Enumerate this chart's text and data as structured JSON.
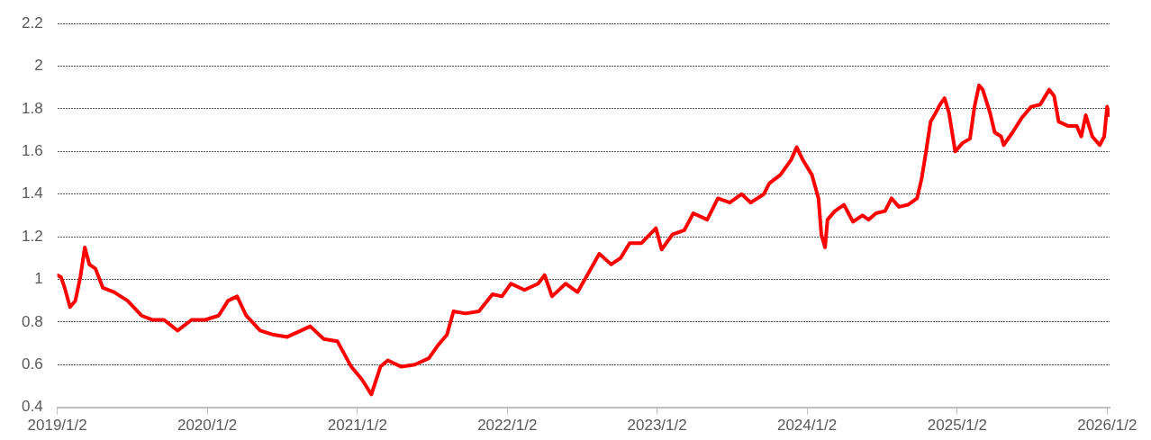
{
  "chart_data": {
    "type": "line",
    "x": [
      "2019-01-02",
      "2019-01-11",
      "2019-01-20",
      "2019-02-02",
      "2019-02-15",
      "2019-02-27",
      "2019-03-10",
      "2019-03-21",
      "2019-04-05",
      "2019-04-23",
      "2019-05-20",
      "2019-06-22",
      "2019-07-26",
      "2019-08-21",
      "2019-09-19",
      "2019-10-22",
      "2019-11-25",
      "2019-12-28",
      "2020-01-30",
      "2020-02-22",
      "2020-03-15",
      "2020-04-06",
      "2020-05-10",
      "2020-06-12",
      "2020-07-15",
      "2020-08-18",
      "2020-09-09",
      "2020-10-12",
      "2020-11-14",
      "2020-12-18",
      "2021-01-13",
      "2021-02-05",
      "2021-02-27",
      "2021-03-17",
      "2021-04-19",
      "2021-05-22",
      "2021-06-25",
      "2021-07-17",
      "2021-08-08",
      "2021-08-24",
      "2021-09-22",
      "2021-10-25",
      "2021-11-27",
      "2021-12-20",
      "2022-01-11",
      "2022-02-13",
      "2022-03-18",
      "2022-04-03",
      "2022-04-21",
      "2022-05-24",
      "2022-06-22",
      "2022-07-19",
      "2022-08-14",
      "2022-09-12",
      "2022-10-05",
      "2022-10-27",
      "2022-11-25",
      "2022-12-30",
      "2023-01-13",
      "2023-02-08",
      "2023-03-09",
      "2023-03-31",
      "2023-05-04",
      "2023-05-30",
      "2023-06-28",
      "2023-07-27",
      "2023-08-18",
      "2023-09-19",
      "2023-10-02",
      "2023-10-29",
      "2023-11-24",
      "2023-12-08",
      "2023-12-23",
      "2024-01-14",
      "2024-01-30",
      "2024-02-06",
      "2024-02-15",
      "2024-02-21",
      "2024-03-10",
      "2024-04-01",
      "2024-04-23",
      "2024-05-16",
      "2024-05-31",
      "2024-06-18",
      "2024-07-10",
      "2024-07-26",
      "2024-08-13",
      "2024-09-04",
      "2024-09-26",
      "2024-10-07",
      "2024-10-18",
      "2024-10-29",
      "2024-11-10",
      "2024-11-21",
      "2024-12-02",
      "2024-12-13",
      "2024-12-28",
      "2025-01-15",
      "2025-02-02",
      "2025-02-13",
      "2025-02-24",
      "2025-03-05",
      "2025-03-23",
      "2025-04-03",
      "2025-04-19",
      "2025-04-25",
      "2025-05-17",
      "2025-06-09",
      "2025-07-01",
      "2025-07-23",
      "2025-08-14",
      "2025-08-26",
      "2025-09-06",
      "2025-09-28",
      "2025-10-20",
      "2025-10-31",
      "2025-11-11",
      "2025-11-27",
      "2025-12-15",
      "2025-12-26",
      "2026-01-02",
      "2026-01-06"
    ],
    "series": [
      {
        "color": "#ff0000",
        "values": [
          1.02,
          1.01,
          0.96,
          0.87,
          0.9,
          1.01,
          1.15,
          1.07,
          1.05,
          0.96,
          0.94,
          0.9,
          0.83,
          0.81,
          0.81,
          0.76,
          0.81,
          0.81,
          0.83,
          0.9,
          0.92,
          0.83,
          0.76,
          0.74,
          0.73,
          0.76,
          0.78,
          0.72,
          0.71,
          0.59,
          0.53,
          0.46,
          0.59,
          0.62,
          0.59,
          0.6,
          0.63,
          0.69,
          0.74,
          0.85,
          0.84,
          0.85,
          0.93,
          0.92,
          0.98,
          0.95,
          0.98,
          1.02,
          0.92,
          0.98,
          0.94,
          1.03,
          1.12,
          1.07,
          1.1,
          1.17,
          1.17,
          1.24,
          1.14,
          1.21,
          1.23,
          1.31,
          1.28,
          1.38,
          1.36,
          1.4,
          1.36,
          1.4,
          1.45,
          1.49,
          1.56,
          1.62,
          1.56,
          1.49,
          1.38,
          1.21,
          1.15,
          1.28,
          1.32,
          1.35,
          1.27,
          1.3,
          1.28,
          1.31,
          1.32,
          1.38,
          1.34,
          1.35,
          1.38,
          1.47,
          1.6,
          1.74,
          1.78,
          1.82,
          1.85,
          1.78,
          1.6,
          1.64,
          1.66,
          1.81,
          1.91,
          1.89,
          1.78,
          1.69,
          1.67,
          1.63,
          1.69,
          1.76,
          1.81,
          1.82,
          1.89,
          1.86,
          1.74,
          1.72,
          1.72,
          1.67,
          1.77,
          1.67,
          1.63,
          1.67,
          1.81,
          1.77
        ]
      }
    ],
    "xlim": [
      "2019-01-02",
      "2026-01-08"
    ],
    "xticks": [
      {
        "value": "2019-01-02",
        "label": "2019/1/2"
      },
      {
        "value": "2020-01-02",
        "label": "2020/1/2"
      },
      {
        "value": "2021-01-02",
        "label": "2021/1/2"
      },
      {
        "value": "2022-01-02",
        "label": "2022/1/2"
      },
      {
        "value": "2023-01-02",
        "label": "2023/1/2"
      },
      {
        "value": "2024-01-02",
        "label": "2024/1/2"
      },
      {
        "value": "2025-01-02",
        "label": "2025/1/2"
      },
      {
        "value": "2026-01-02",
        "label": "2026/1/2"
      }
    ],
    "ylim": [
      0.4,
      2.2
    ],
    "yticks": [
      0.4,
      0.6,
      0.8,
      1,
      1.2,
      1.4,
      1.6,
      1.8,
      2,
      2.2
    ],
    "grid": "y",
    "legend": false,
    "marker": "none",
    "line_style": "solid"
  }
}
